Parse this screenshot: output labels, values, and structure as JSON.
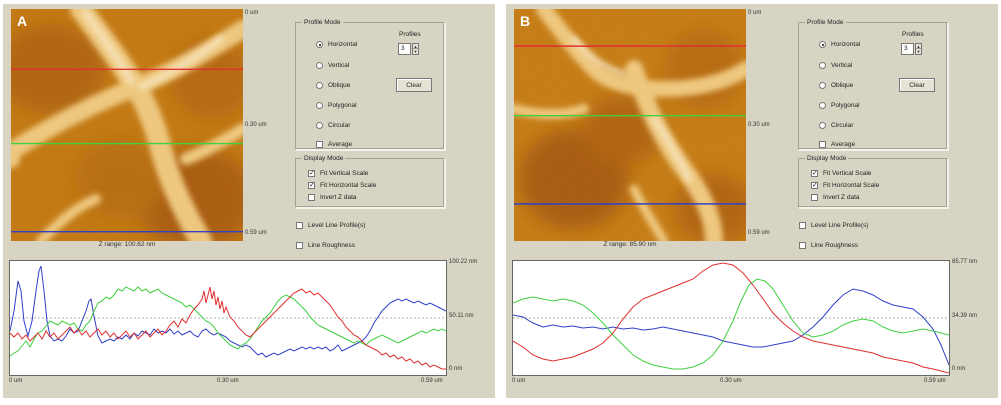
{
  "panels": [
    {
      "letter": "A",
      "image_axis": {
        "top": "0 um",
        "middle": "0.30 um",
        "bottom": "0.59 um"
      },
      "z_range": "Z range: 100.62 nm",
      "profile_mode": {
        "title": "Profile Mode",
        "options": [
          "Horizontal",
          "Vertical",
          "Oblique",
          "Polygonal",
          "Circular"
        ],
        "selected": "Horizontal",
        "average_label": "Average",
        "profiles_label": "Profiles",
        "profiles_value": "3",
        "clear_label": "Clear"
      },
      "display_mode": {
        "title": "Display Mode",
        "items": [
          {
            "label": "Fit Vertical Scale",
            "checked": true
          },
          {
            "label": "Fit Horizontal Scale",
            "checked": true
          },
          {
            "label": "Invert Z data",
            "checked": false
          }
        ]
      },
      "level_line_label": "Level Line Profile(s)",
      "line_roughness_label": "Line Roughness",
      "profile_lines": {
        "red": 0.26,
        "green": 0.58,
        "blue": 0.96
      },
      "chart": {
        "y_top": "100.22 nm",
        "y_mid": "50.11 nm",
        "y_bottom": "0 nm",
        "x_left": "0 um",
        "x_mid": "0.30 um",
        "x_right": "0.59 um"
      }
    },
    {
      "letter": "B",
      "image_axis": {
        "top": "0 um",
        "middle": "0.30 um",
        "bottom": "0.59 um"
      },
      "z_range": "Z range: 85.90 nm",
      "profile_mode": {
        "title": "Profile Mode",
        "options": [
          "Horizontal",
          "Vertical",
          "Oblique",
          "Polygonal",
          "Circular"
        ],
        "selected": "Horizontal",
        "average_label": "Average",
        "profiles_label": "Profiles",
        "profiles_value": "3",
        "clear_label": "Clear"
      },
      "display_mode": {
        "title": "Display Mode",
        "items": [
          {
            "label": "Fit Vertical Scale",
            "checked": true
          },
          {
            "label": "Fit Horizontal Scale",
            "checked": true
          },
          {
            "label": "Invert Z data",
            "checked": false
          }
        ]
      },
      "level_line_label": "Level Line Profile(s)",
      "line_roughness_label": "Line Roughness",
      "profile_lines": {
        "red": 0.16,
        "green": 0.46,
        "blue": 0.84
      },
      "chart": {
        "y_top": "85.77 nm",
        "y_mid": "34.39 nm",
        "y_bottom": "0 nm",
        "x_left": "0 um",
        "x_mid": "0.30 um",
        "x_right": "0.59 um"
      }
    }
  ],
  "colors": {
    "red_profile": "#e03030",
    "green_profile": "#40d040",
    "blue_profile": "#3040c8",
    "panel_bg": "#d8d4c3"
  }
}
